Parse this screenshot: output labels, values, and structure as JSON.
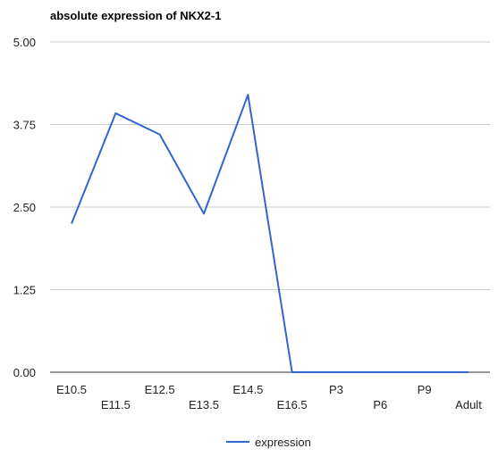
{
  "chart_data": {
    "type": "line",
    "title": "absolute expression of NKX2-1",
    "xlabel": "",
    "ylabel": "",
    "categories": [
      "E10.5",
      "E11.5",
      "E12.5",
      "E13.5",
      "E14.5",
      "E16.5",
      "P3",
      "P6",
      "P9",
      "Adult"
    ],
    "series": [
      {
        "name": "expression",
        "color": "#3366cc",
        "values": [
          2.25,
          3.92,
          3.6,
          2.4,
          4.2,
          0.0,
          0.0,
          0.0,
          0.0,
          0.0
        ]
      }
    ],
    "ylim": [
      0,
      5
    ],
    "yticks": [
      "0.00",
      "1.25",
      "2.50",
      "3.75",
      "5.00"
    ],
    "grid": true,
    "legend_position": "bottom"
  }
}
